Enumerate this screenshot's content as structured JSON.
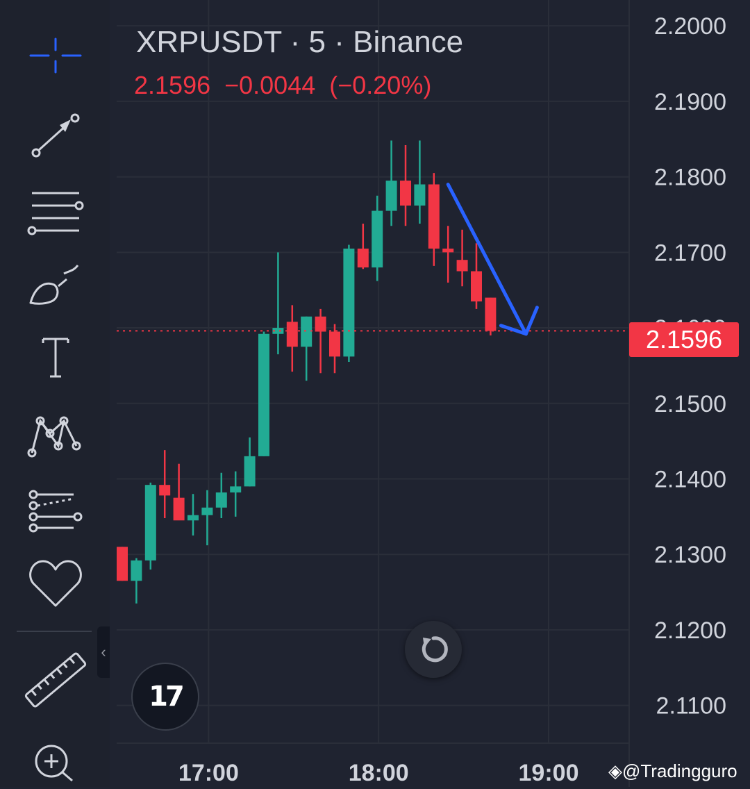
{
  "header": {
    "symbol_title": "XRPUSDT · 5 · Binance",
    "price": "2.1596",
    "change_abs": "−0.0044",
    "change_pct": "(−0.20%)"
  },
  "current_price_tag": "2.1596",
  "watermark": "@Tradingguro",
  "logo_text": "17",
  "toolbar": {
    "tools": [
      "crosshair-icon",
      "trend-line-icon",
      "fib-retracement-icon",
      "brush-icon",
      "text-icon",
      "pattern-icon",
      "prediction-icon",
      "favorites-icon",
      "ruler-icon",
      "zoom-in-icon"
    ]
  },
  "colors": {
    "background": "#1f2330",
    "up": "#22ab94",
    "down": "#f23645",
    "arrow": "#2962ff",
    "text": "#d1d4dc",
    "grid": "#2a2e39"
  },
  "chart_data": {
    "type": "candlestick",
    "timeframe": "5",
    "ylim": [
      2.105,
      2.2025
    ],
    "y_ticks": [
      "2.2000",
      "2.1900",
      "2.1800",
      "2.1700",
      "2.1600",
      "2.1500",
      "2.1400",
      "2.1300",
      "2.1200",
      "2.1100"
    ],
    "x_ticks": [
      "17:00",
      "18:00",
      "19:00"
    ],
    "x_tick_index": [
      6,
      18,
      30
    ],
    "last_price": 2.1596,
    "candles": [
      {
        "o": 2.131,
        "h": 2.131,
        "l": 2.1265,
        "c": 2.1265
      },
      {
        "o": 2.1265,
        "h": 2.1295,
        "l": 2.1235,
        "c": 2.1292
      },
      {
        "o": 2.1292,
        "h": 2.1395,
        "l": 2.128,
        "c": 2.1392
      },
      {
        "o": 2.1392,
        "h": 2.1438,
        "l": 2.1348,
        "c": 2.1378
      },
      {
        "o": 2.1375,
        "h": 2.142,
        "l": 2.1348,
        "c": 2.1345
      },
      {
        "o": 2.1345,
        "h": 2.138,
        "l": 2.1325,
        "c": 2.1352
      },
      {
        "o": 2.1352,
        "h": 2.1385,
        "l": 2.1312,
        "c": 2.1362
      },
      {
        "o": 2.1362,
        "h": 2.1408,
        "l": 2.1348,
        "c": 2.1382
      },
      {
        "o": 2.1382,
        "h": 2.141,
        "l": 2.135,
        "c": 2.139
      },
      {
        "o": 2.139,
        "h": 2.1455,
        "l": 2.139,
        "c": 2.143
      },
      {
        "o": 2.143,
        "h": 2.1595,
        "l": 2.143,
        "c": 2.1592
      },
      {
        "o": 2.1592,
        "h": 2.17,
        "l": 2.1565,
        "c": 2.16
      },
      {
        "o": 2.1608,
        "h": 2.163,
        "l": 2.1542,
        "c": 2.1575
      },
      {
        "o": 2.1575,
        "h": 2.1615,
        "l": 2.153,
        "c": 2.1615
      },
      {
        "o": 2.1615,
        "h": 2.1625,
        "l": 2.154,
        "c": 2.1595
      },
      {
        "o": 2.1595,
        "h": 2.1605,
        "l": 2.154,
        "c": 2.1562
      },
      {
        "o": 2.1562,
        "h": 2.171,
        "l": 2.1555,
        "c": 2.1705
      },
      {
        "o": 2.1705,
        "h": 2.1738,
        "l": 2.1678,
        "c": 2.168
      },
      {
        "o": 2.168,
        "h": 2.1775,
        "l": 2.1662,
        "c": 2.1755
      },
      {
        "o": 2.1755,
        "h": 2.1848,
        "l": 2.1735,
        "c": 2.1795
      },
      {
        "o": 2.1795,
        "h": 2.1842,
        "l": 2.1735,
        "c": 2.1762
      },
      {
        "o": 2.1762,
        "h": 2.1848,
        "l": 2.1738,
        "c": 2.179
      },
      {
        "o": 2.179,
        "h": 2.1805,
        "l": 2.1682,
        "c": 2.1705
      },
      {
        "o": 2.1705,
        "h": 2.1735,
        "l": 2.166,
        "c": 2.17
      },
      {
        "o": 2.169,
        "h": 2.173,
        "l": 2.1655,
        "c": 2.1675
      },
      {
        "o": 2.1675,
        "h": 2.1712,
        "l": 2.1625,
        "c": 2.1635
      },
      {
        "o": 2.164,
        "h": 2.164,
        "l": 2.159,
        "c": 2.1596
      }
    ],
    "annotation": {
      "type": "arrow",
      "from": {
        "index": 23,
        "price": 2.179
      },
      "to": {
        "index": 28.5,
        "price": 2.1592
      }
    }
  }
}
